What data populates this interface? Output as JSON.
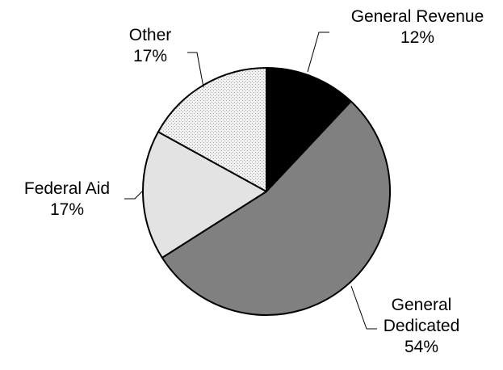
{
  "chart_data": {
    "type": "pie",
    "title": "",
    "start_angle_deg": 0,
    "direction": "clockwise",
    "slices": [
      {
        "label": "General Revenue",
        "label_lines": [
          "General Revenue",
          "12%"
        ],
        "value": 12,
        "value_label": "12%",
        "fill": "#000000",
        "pattern": "solid"
      },
      {
        "label": "General Dedicated",
        "label_lines": [
          "General",
          "Dedicated",
          "54%"
        ],
        "value": 54,
        "value_label": "54%",
        "fill": "#808080",
        "pattern": "solid"
      },
      {
        "label": "Federal Aid",
        "label_lines": [
          "Federal Aid",
          "17%"
        ],
        "value": 17,
        "value_label": "17%",
        "fill": "#e3e3e3",
        "pattern": "solid"
      },
      {
        "label": "Other",
        "label_lines": [
          "Other",
          "17%"
        ],
        "value": 17,
        "value_label": "17%",
        "fill": "#eeeeee",
        "pattern": "dotted"
      }
    ],
    "legend": "none",
    "data_labels": "outside-with-leader-lines"
  }
}
